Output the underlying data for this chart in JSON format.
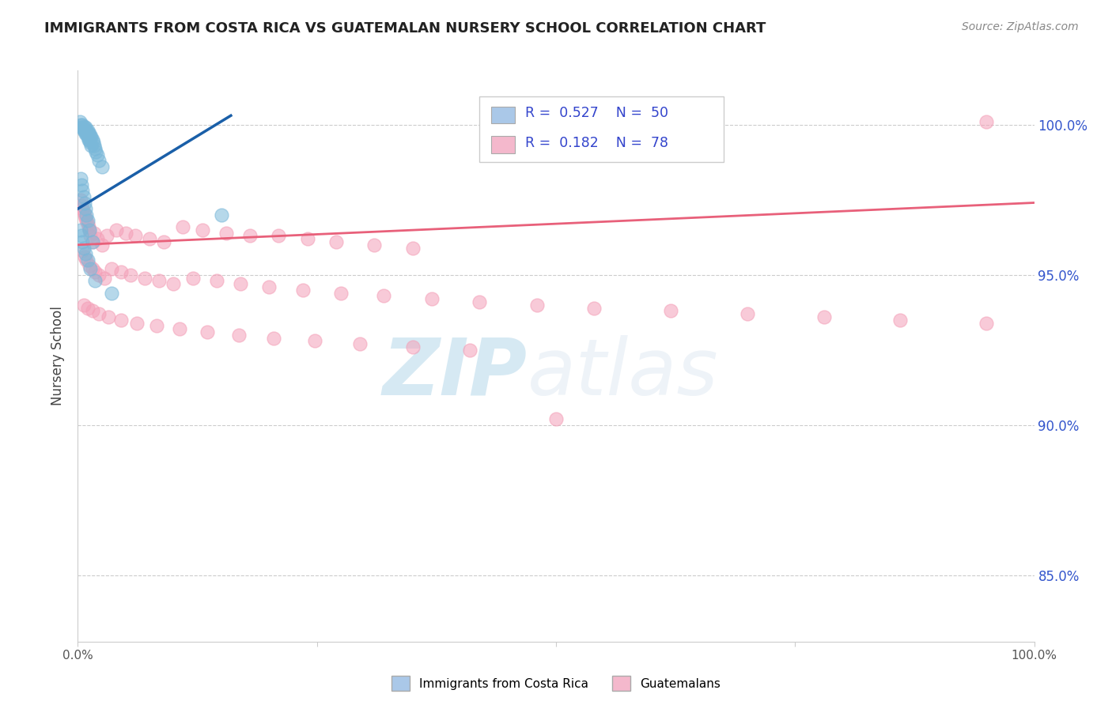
{
  "title": "IMMIGRANTS FROM COSTA RICA VS GUATEMALAN NURSERY SCHOOL CORRELATION CHART",
  "source": "Source: ZipAtlas.com",
  "ylabel": "Nursery School",
  "xlim": [
    0,
    1.0
  ],
  "ylim": [
    0.828,
    1.018
  ],
  "blue_scatter_x": [
    0.002,
    0.003,
    0.004,
    0.005,
    0.005,
    0.006,
    0.007,
    0.007,
    0.008,
    0.008,
    0.009,
    0.009,
    0.01,
    0.01,
    0.011,
    0.011,
    0.012,
    0.012,
    0.013,
    0.013,
    0.014,
    0.014,
    0.015,
    0.016,
    0.017,
    0.018,
    0.019,
    0.02,
    0.022,
    0.025,
    0.003,
    0.004,
    0.005,
    0.006,
    0.007,
    0.008,
    0.009,
    0.01,
    0.012,
    0.015,
    0.003,
    0.004,
    0.005,
    0.006,
    0.008,
    0.01,
    0.013,
    0.018,
    0.035,
    0.15
  ],
  "blue_scatter_y": [
    1.001,
    1.0,
    0.999,
    1.0,
    0.999,
    0.998,
    0.999,
    0.998,
    0.999,
    0.997,
    0.998,
    0.997,
    0.998,
    0.996,
    0.997,
    0.995,
    0.997,
    0.995,
    0.996,
    0.994,
    0.996,
    0.993,
    0.995,
    0.994,
    0.993,
    0.992,
    0.991,
    0.99,
    0.988,
    0.986,
    0.982,
    0.98,
    0.978,
    0.976,
    0.974,
    0.972,
    0.97,
    0.968,
    0.965,
    0.961,
    0.965,
    0.963,
    0.961,
    0.959,
    0.957,
    0.955,
    0.952,
    0.948,
    0.944,
    0.97
  ],
  "blue_trend_x": [
    0.0,
    0.16
  ],
  "blue_trend_y": [
    0.972,
    1.003
  ],
  "pink_scatter_x": [
    0.003,
    0.004,
    0.005,
    0.006,
    0.007,
    0.008,
    0.009,
    0.01,
    0.011,
    0.012,
    0.013,
    0.015,
    0.017,
    0.02,
    0.025,
    0.03,
    0.04,
    0.05,
    0.06,
    0.075,
    0.09,
    0.11,
    0.13,
    0.155,
    0.18,
    0.21,
    0.24,
    0.27,
    0.31,
    0.35,
    0.005,
    0.007,
    0.009,
    0.012,
    0.015,
    0.018,
    0.022,
    0.028,
    0.035,
    0.045,
    0.055,
    0.07,
    0.085,
    0.1,
    0.12,
    0.145,
    0.17,
    0.2,
    0.235,
    0.275,
    0.32,
    0.37,
    0.42,
    0.48,
    0.54,
    0.62,
    0.7,
    0.78,
    0.86,
    0.95,
    0.006,
    0.01,
    0.015,
    0.022,
    0.032,
    0.045,
    0.062,
    0.082,
    0.106,
    0.135,
    0.168,
    0.205,
    0.248,
    0.295,
    0.35,
    0.41,
    0.95,
    0.5
  ],
  "pink_scatter_y": [
    0.975,
    0.973,
    0.972,
    0.971,
    0.97,
    0.969,
    0.968,
    0.967,
    0.966,
    0.965,
    0.963,
    0.961,
    0.964,
    0.962,
    0.96,
    0.963,
    0.965,
    0.964,
    0.963,
    0.962,
    0.961,
    0.966,
    0.965,
    0.964,
    0.963,
    0.963,
    0.962,
    0.961,
    0.96,
    0.959,
    0.958,
    0.956,
    0.955,
    0.953,
    0.952,
    0.951,
    0.95,
    0.949,
    0.952,
    0.951,
    0.95,
    0.949,
    0.948,
    0.947,
    0.949,
    0.948,
    0.947,
    0.946,
    0.945,
    0.944,
    0.943,
    0.942,
    0.941,
    0.94,
    0.939,
    0.938,
    0.937,
    0.936,
    0.935,
    0.934,
    0.94,
    0.939,
    0.938,
    0.937,
    0.936,
    0.935,
    0.934,
    0.933,
    0.932,
    0.931,
    0.93,
    0.929,
    0.928,
    0.927,
    0.926,
    0.925,
    1.001,
    0.902
  ],
  "pink_trend_x": [
    0.0,
    1.0
  ],
  "pink_trend_y": [
    0.96,
    0.974
  ],
  "watermark_zip": "ZIP",
  "watermark_atlas": "atlas",
  "blue_color": "#7ab8d9",
  "pink_color": "#f4a0b8",
  "blue_line_color": "#1a5fa8",
  "pink_line_color": "#e8607a",
  "legend_blue_color": "#aac8e8",
  "legend_pink_color": "#f4b8cc",
  "legend_text_color": "#3344cc",
  "grid_color": "#cccccc",
  "title_color": "#222222",
  "source_color": "#888888",
  "background_color": "#ffffff",
  "yticks": [
    0.85,
    0.9,
    0.95,
    1.0
  ],
  "ytick_labels": [
    "85.0%",
    "90.0%",
    "95.0%",
    "100.0%"
  ]
}
